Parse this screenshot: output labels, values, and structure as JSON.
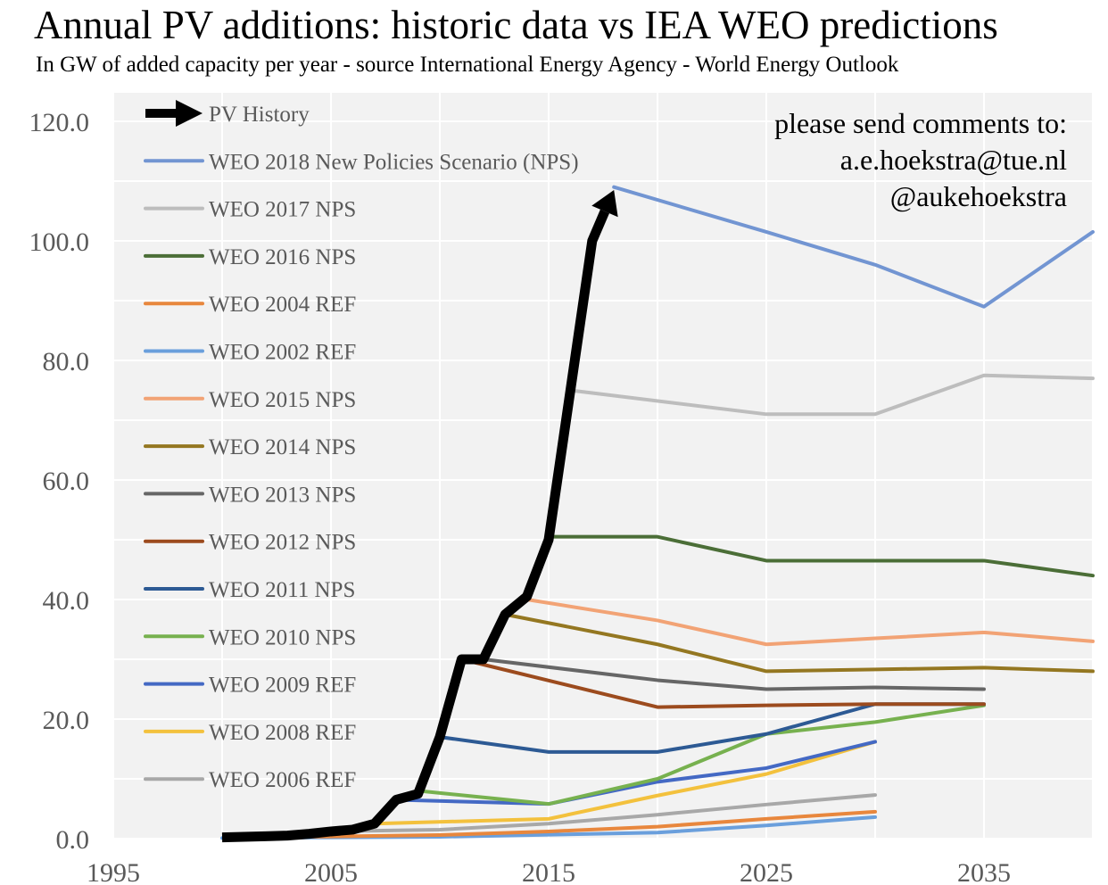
{
  "chart_data": {
    "type": "line",
    "title": "Annual PV additions: historic data vs IEA WEO predictions",
    "subtitle": "In GW of added capacity per year - source International Energy Agency - World Energy Outlook",
    "xlabel": "",
    "ylabel": "",
    "xlim": [
      1995,
      2040
    ],
    "ylim": [
      0,
      120
    ],
    "x_ticks": [
      "1995",
      "2005",
      "2015",
      "2025",
      "2035"
    ],
    "y_ticks": [
      "0.0",
      "20.0",
      "40.0",
      "60.0",
      "80.0",
      "100.0",
      "120.0"
    ],
    "grid": true,
    "legend_position": "top-left",
    "annotation": [
      "please send comments to:",
      "a.e.hoekstra@tue.nl",
      "@aukehoekstra"
    ],
    "series": [
      {
        "name": "PV History",
        "color": "#000000",
        "arrow": true,
        "points": [
          [
            2000,
            0.2
          ],
          [
            2001,
            0.3
          ],
          [
            2002,
            0.4
          ],
          [
            2003,
            0.5
          ],
          [
            2004,
            0.8
          ],
          [
            2005,
            1.2
          ],
          [
            2006,
            1.5
          ],
          [
            2007,
            2.5
          ],
          [
            2008,
            6.5
          ],
          [
            2009,
            7.5
          ],
          [
            2010,
            17
          ],
          [
            2011,
            30
          ],
          [
            2012,
            30
          ],
          [
            2013,
            37.5
          ],
          [
            2014,
            40.5
          ],
          [
            2015,
            50
          ],
          [
            2016,
            75
          ],
          [
            2017,
            100
          ],
          [
            2018,
            108.5
          ]
        ]
      },
      {
        "name": "WEO 2018 New Policies Scenario (NPS)",
        "color": "#7295d2",
        "points": [
          [
            2018,
            109
          ],
          [
            2025,
            101.5
          ],
          [
            2030,
            96
          ],
          [
            2035,
            89
          ],
          [
            2040,
            101.5
          ]
        ]
      },
      {
        "name": "WEO 2017 NPS",
        "color": "#bdbdbd",
        "points": [
          [
            2016,
            75
          ],
          [
            2025,
            71
          ],
          [
            2030,
            71
          ],
          [
            2035,
            77.5
          ],
          [
            2040,
            77
          ]
        ]
      },
      {
        "name": "WEO 2016 NPS",
        "color": "#4b6e37",
        "points": [
          [
            2015,
            50.5
          ],
          [
            2020,
            50.5
          ],
          [
            2025,
            46.5
          ],
          [
            2030,
            46.5
          ],
          [
            2035,
            46.5
          ],
          [
            2040,
            44
          ]
        ]
      },
      {
        "name": "WEO 2004 REF",
        "color": "#e8873d",
        "points": [
          [
            2002,
            0.2
          ],
          [
            2010,
            0.6
          ],
          [
            2015,
            1.2
          ],
          [
            2020,
            2
          ],
          [
            2025,
            3.3
          ],
          [
            2030,
            4.5
          ]
        ]
      },
      {
        "name": "WEO 2002 REF",
        "color": "#6a9fdc",
        "points": [
          [
            2000,
            0.1
          ],
          [
            2010,
            0.3
          ],
          [
            2020,
            1
          ],
          [
            2025,
            2.2
          ],
          [
            2030,
            3.6
          ]
        ]
      },
      {
        "name": "WEO 2015 NPS",
        "color": "#f2a375",
        "points": [
          [
            2014,
            40
          ],
          [
            2020,
            36.5
          ],
          [
            2025,
            32.5
          ],
          [
            2030,
            33.5
          ],
          [
            2035,
            34.5
          ],
          [
            2040,
            33
          ]
        ]
      },
      {
        "name": "WEO 2014 NPS",
        "color": "#947721",
        "points": [
          [
            2013,
            37.5
          ],
          [
            2020,
            32.5
          ],
          [
            2025,
            28
          ],
          [
            2030,
            28.3
          ],
          [
            2035,
            28.6
          ],
          [
            2040,
            28
          ]
        ]
      },
      {
        "name": "WEO 2013 NPS",
        "color": "#666666",
        "points": [
          [
            2012,
            30
          ],
          [
            2020,
            26.5
          ],
          [
            2025,
            25
          ],
          [
            2030,
            25.3
          ],
          [
            2035,
            25
          ]
        ]
      },
      {
        "name": "WEO 2012 NPS",
        "color": "#9c4b1e",
        "points": [
          [
            2011,
            30
          ],
          [
            2020,
            22
          ],
          [
            2025,
            22.3
          ],
          [
            2030,
            22.5
          ],
          [
            2035,
            22.5
          ]
        ]
      },
      {
        "name": "WEO 2011 NPS",
        "color": "#2d5a94",
        "points": [
          [
            2010,
            17
          ],
          [
            2015,
            14.5
          ],
          [
            2020,
            14.5
          ],
          [
            2025,
            17.5
          ],
          [
            2030,
            22.5
          ],
          [
            2035,
            22.5
          ]
        ]
      },
      {
        "name": "WEO 2010 NPS",
        "color": "#77b14f",
        "points": [
          [
            2009,
            8
          ],
          [
            2015,
            5.8
          ],
          [
            2020,
            10
          ],
          [
            2025,
            17.5
          ],
          [
            2030,
            19.5
          ],
          [
            2035,
            22.3
          ]
        ]
      },
      {
        "name": "WEO 2009 REF",
        "color": "#4469c4",
        "points": [
          [
            2008,
            6.5
          ],
          [
            2015,
            5.8
          ],
          [
            2020,
            9.5
          ],
          [
            2025,
            11.8
          ],
          [
            2030,
            16.2
          ]
        ]
      },
      {
        "name": "WEO 2008 REF",
        "color": "#f3c13d",
        "points": [
          [
            2007,
            2.5
          ],
          [
            2015,
            3.3
          ],
          [
            2020,
            7.2
          ],
          [
            2025,
            10.8
          ],
          [
            2030,
            16.2
          ]
        ]
      },
      {
        "name": "WEO 2006 REF",
        "color": "#a8a8a8",
        "points": [
          [
            2005,
            1.2
          ],
          [
            2010,
            1.5
          ],
          [
            2015,
            2.5
          ],
          [
            2020,
            4
          ],
          [
            2025,
            5.7
          ],
          [
            2030,
            7.3
          ]
        ]
      }
    ]
  }
}
